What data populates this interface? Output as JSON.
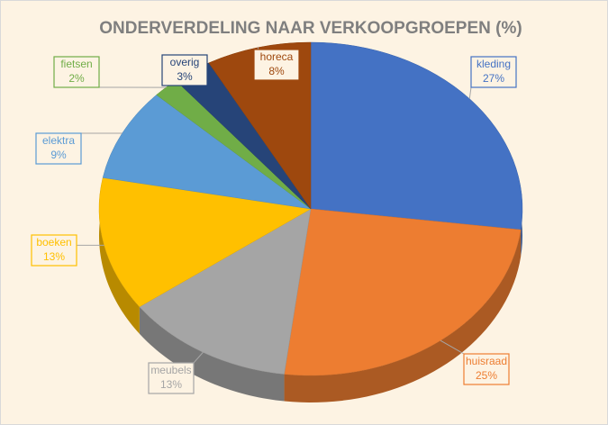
{
  "chart_data": {
    "type": "pie",
    "title": "ONDERVERDELING NAAR VERKOOPGROEPEN (%)",
    "categories": [
      "kleding",
      "huisraad",
      "meubels",
      "boeken",
      "elektra",
      "fietsen",
      "overig",
      "horeca"
    ],
    "values": [
      27,
      25,
      13,
      13,
      9,
      2,
      3,
      8
    ],
    "value_labels": [
      "27%",
      "25%",
      "13%",
      "13%",
      "9%",
      "2%",
      "3%",
      "8%"
    ],
    "colors": [
      "#4472c4",
      "#ed7d31",
      "#a5a5a5",
      "#ffc000",
      "#5b9bd5",
      "#70ad47",
      "#264478",
      "#9e480e"
    ]
  }
}
